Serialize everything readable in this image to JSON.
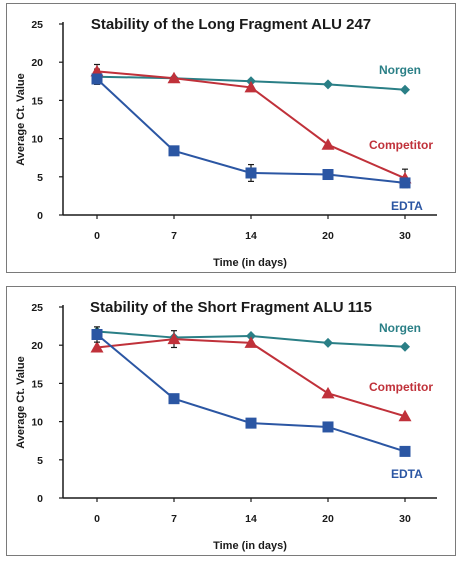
{
  "chart_data": [
    {
      "type": "line",
      "title": "Stability of the Long Fragment ALU 247",
      "xlabel": "Time (in days)",
      "ylabel": "Average Ct. Value",
      "categories": [
        "0",
        "7",
        "14",
        "20",
        "30"
      ],
      "ylim": [
        0,
        25
      ],
      "yticks": [
        "0",
        "5",
        "10",
        "15",
        "20",
        "25"
      ],
      "grid": false,
      "series": [
        {
          "name": "Norgen",
          "color": "#2a7f86",
          "marker": "diamond",
          "values": [
            18.1,
            17.9,
            17.5,
            17.1,
            16.4
          ]
        },
        {
          "name": "Competitor",
          "color": "#c0313a",
          "marker": "triangle",
          "values": [
            18.8,
            17.9,
            16.7,
            9.2,
            4.8
          ]
        },
        {
          "name": "EDTA",
          "color": "#2b56a3",
          "marker": "square",
          "values": [
            17.8,
            8.4,
            5.5,
            5.3,
            4.2
          ]
        }
      ]
    },
    {
      "type": "line",
      "title": "Stability of the Short Fragment ALU 115",
      "xlabel": "Time (in days)",
      "ylabel": "Average Ct. Value",
      "categories": [
        "0",
        "7",
        "14",
        "20",
        "30"
      ],
      "ylim": [
        0,
        25
      ],
      "yticks": [
        "0",
        "5",
        "10",
        "15",
        "20",
        "25"
      ],
      "grid": false,
      "series": [
        {
          "name": "Norgen",
          "color": "#2a7f86",
          "marker": "diamond",
          "values": [
            21.8,
            21.0,
            21.2,
            20.3,
            19.8
          ]
        },
        {
          "name": "Competitor",
          "color": "#c0313a",
          "marker": "triangle",
          "values": [
            19.7,
            20.8,
            20.3,
            13.7,
            10.7
          ]
        },
        {
          "name": "EDTA",
          "color": "#2b56a3",
          "marker": "square",
          "values": [
            21.4,
            13.0,
            9.8,
            9.3,
            6.1
          ]
        }
      ]
    }
  ]
}
